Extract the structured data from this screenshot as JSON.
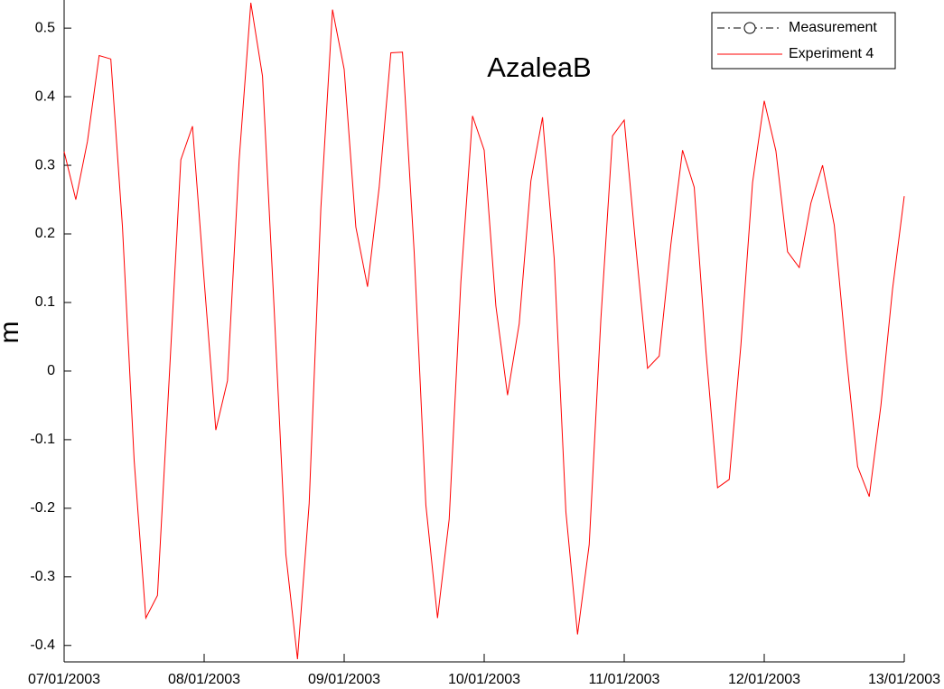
{
  "chart_data": {
    "type": "line",
    "title": "AzaleaB",
    "y_label": "m",
    "x": [
      0,
      2,
      4,
      6,
      8,
      10,
      12,
      14,
      16,
      18,
      20,
      22,
      24,
      26,
      28,
      30,
      32,
      34,
      36,
      38,
      40,
      42,
      44,
      46,
      48,
      50,
      52,
      54,
      56,
      58,
      60,
      62,
      64,
      66,
      68,
      70,
      72,
      74,
      76,
      78,
      80,
      82,
      84,
      86,
      88,
      90,
      92,
      94,
      96,
      98,
      100,
      102,
      104,
      106,
      108,
      110,
      112,
      114,
      116,
      118,
      120,
      122,
      124,
      126,
      128,
      130,
      132,
      134,
      136,
      138,
      140,
      142,
      144
    ],
    "xlim": [
      0,
      144
    ],
    "xticks": [
      {
        "value": 0,
        "label": "07/01/2003"
      },
      {
        "value": 24,
        "label": "08/01/2003"
      },
      {
        "value": 48,
        "label": "09/01/2003"
      },
      {
        "value": 72,
        "label": "10/01/2003"
      },
      {
        "value": 96,
        "label": "11/01/2003"
      },
      {
        "value": 120,
        "label": "12/01/2003"
      },
      {
        "value": 144,
        "label": "13/01/2003"
      }
    ],
    "ylim": [
      -0.424,
      0.541
    ],
    "yticks": [
      -0.4,
      -0.3,
      -0.2,
      -0.1,
      0,
      0.1,
      0.2,
      0.3,
      0.4,
      0.5
    ],
    "grid": false,
    "legend": "upper right",
    "series": [
      {
        "name": "Measurement",
        "color": "#000000",
        "marker": "circle",
        "dash": "dash-dot",
        "values": [
          null,
          null,
          null,
          null,
          null,
          null,
          null,
          null,
          null,
          null,
          null,
          null,
          null,
          null,
          null,
          null,
          null,
          null,
          null,
          null,
          null,
          null,
          null,
          null,
          null,
          null,
          null,
          null,
          null,
          null,
          null,
          null,
          null,
          null,
          null,
          null,
          null,
          null,
          null,
          null,
          null,
          null,
          null,
          null,
          null,
          null,
          null,
          null,
          null,
          null,
          null,
          null,
          null,
          null,
          null,
          null,
          null,
          null,
          null,
          null,
          null,
          null,
          null,
          null,
          null,
          null,
          null,
          null,
          null,
          null,
          null,
          null,
          null
        ]
      },
      {
        "name": "Experiment 4",
        "color": "#ff0000",
        "values": [
          0.32,
          0.25,
          0.335,
          0.46,
          0.455,
          0.21,
          -0.13,
          -0.36,
          -0.327,
          -0.012,
          0.308,
          0.357,
          0.132,
          -0.086,
          -0.014,
          0.308,
          0.537,
          0.43,
          0.09,
          -0.267,
          -0.42,
          -0.193,
          0.237,
          0.527,
          0.44,
          0.21,
          0.123,
          0.268,
          0.464,
          0.465,
          0.173,
          -0.195,
          -0.36,
          -0.216,
          0.13,
          0.372,
          0.322,
          0.095,
          -0.035,
          0.069,
          0.277,
          0.37,
          0.164,
          -0.205,
          -0.384,
          -0.253,
          0.076,
          0.343,
          0.366,
          0.18,
          0.004,
          0.022,
          0.185,
          0.322,
          0.268,
          0.03,
          -0.17,
          -0.158,
          0.038,
          0.275,
          0.394,
          0.321,
          0.174,
          0.151,
          0.245,
          0.3,
          0.213,
          0.028,
          -0.139,
          -0.183,
          -0.05,
          0.12,
          0.255
        ]
      }
    ]
  }
}
